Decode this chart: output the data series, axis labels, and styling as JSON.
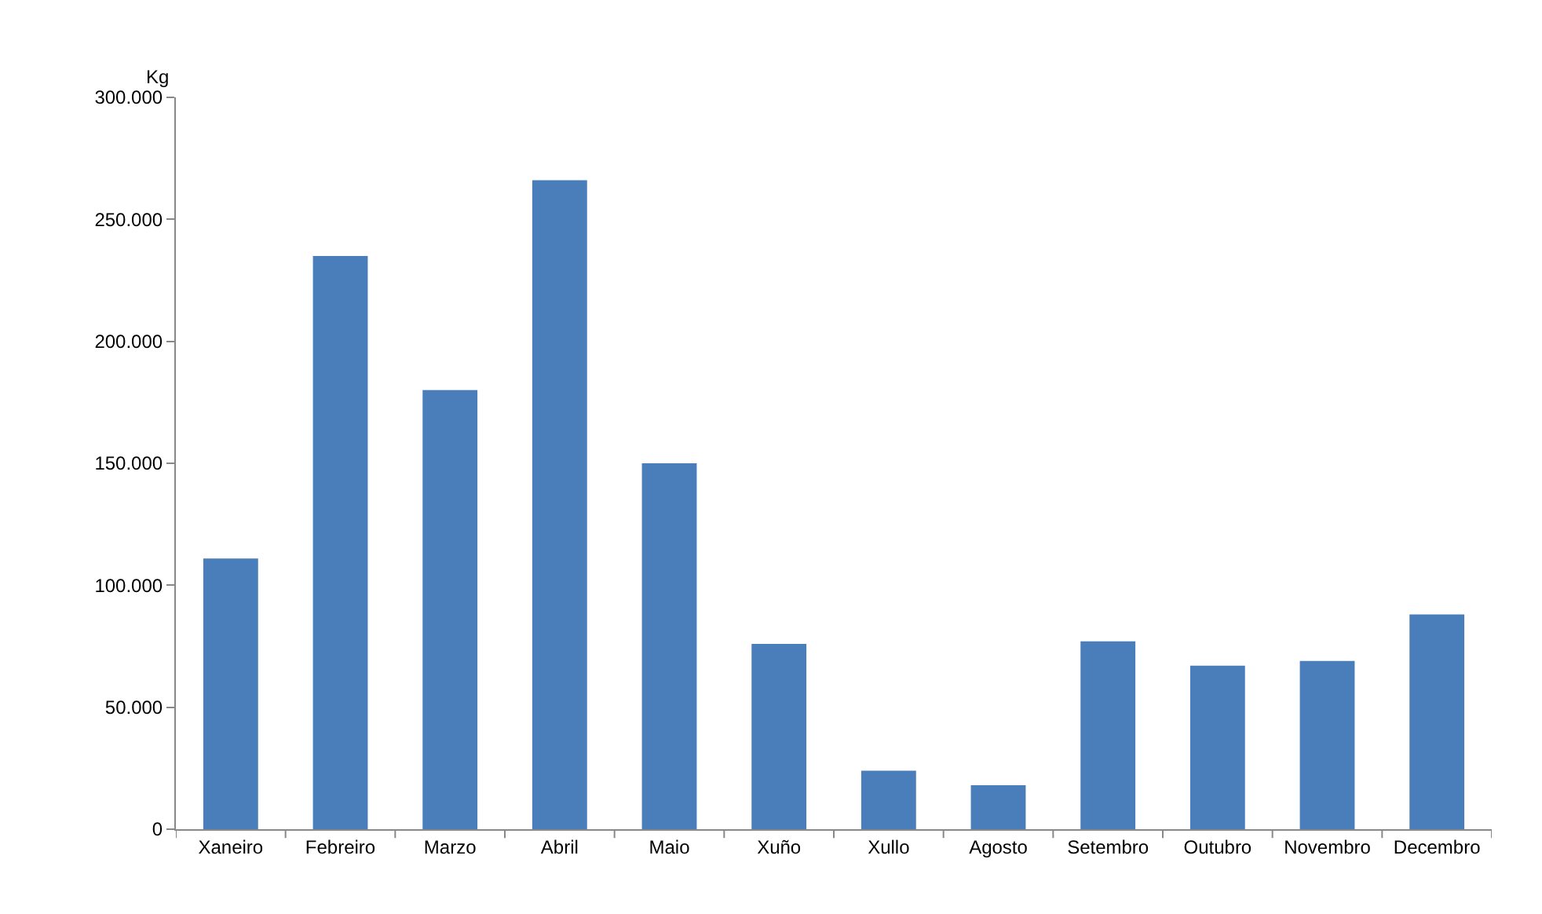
{
  "chart_data": {
    "type": "bar",
    "ylabel": "Kg",
    "categories": [
      "Xaneiro",
      "Febreiro",
      "Marzo",
      "Abril",
      "Maio",
      "Xuño",
      "Xullo",
      "Agosto",
      "Setembro",
      "Outubro",
      "Novembro",
      "Decembro"
    ],
    "values": [
      111000,
      235000,
      180000,
      266000,
      150000,
      76000,
      24000,
      18000,
      77000,
      67000,
      69000,
      88000
    ],
    "color": "#4a7ebb",
    "ylim": [
      0,
      300000
    ],
    "yticks": [
      {
        "value": 0,
        "label": "0"
      },
      {
        "value": 50000,
        "label": "50.000"
      },
      {
        "value": 100000,
        "label": "100.000"
      },
      {
        "value": 150000,
        "label": "150.000"
      },
      {
        "value": 200000,
        "label": "200.000"
      },
      {
        "value": 250000,
        "label": "250.000"
      },
      {
        "value": 300000,
        "label": "300.000"
      }
    ]
  }
}
